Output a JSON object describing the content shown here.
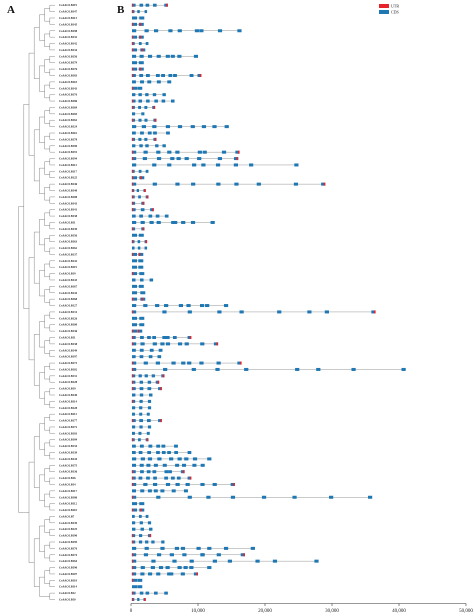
{
  "panels": {
    "a_label": "A",
    "b_label": "B"
  },
  "legend": [
    {
      "label": "UTR",
      "color": "#e8232a"
    },
    {
      "label": "CDS",
      "color": "#1f78b4"
    }
  ],
  "axis": {
    "ticks": [
      {
        "value": 0,
        "label": "0"
      },
      {
        "value": 10000,
        "label": "10,000"
      },
      {
        "value": 20000,
        "label": "20,000"
      },
      {
        "value": 30000,
        "label": "30,000"
      },
      {
        "value": 40000,
        "label": "40,000"
      },
      {
        "value": 50000,
        "label": "50,000"
      }
    ],
    "max": 50000
  },
  "colors": {
    "utr": "#e8232a",
    "cds": "#1f78b4",
    "intron": "#888888",
    "tree": "#555555"
  },
  "genes": [
    {
      "name": "CsAAO1.B119",
      "len": 5500
    },
    {
      "name": "CsAAO1.B147",
      "len": 2400
    },
    {
      "name": "CsAAO1.B113",
      "len": 1600
    },
    {
      "name": "CsAAO1.B145",
      "len": 1500
    },
    {
      "name": "CsAAO1.B198",
      "len": 16500
    },
    {
      "name": "CsAAO1.B132",
      "len": 1500
    },
    {
      "name": "CsAAO1.B142",
      "len": 2600
    },
    {
      "name": "CsAAO1.B134",
      "len": 1800
    },
    {
      "name": "CsAAO1.B156",
      "len": 10000
    },
    {
      "name": "CsAAO1.B179",
      "len": 1500
    },
    {
      "name": "CsAAO1.B176",
      "len": 1500
    },
    {
      "name": "CsAAO1.B183",
      "len": 10500
    },
    {
      "name": "CsAAO1.B118",
      "len": 6000
    },
    {
      "name": "CsAAO1.B143",
      "len": 1200
    },
    {
      "name": "CsAAO1.B176",
      "len": 5200
    },
    {
      "name": "CsAAO1.B186",
      "len": 6500
    },
    {
      "name": "CsAAO1.B169",
      "len": 3600
    },
    {
      "name": "CsAAO1.B183",
      "len": 2000
    },
    {
      "name": "CsAAO1.B162",
      "len": 3800
    },
    {
      "name": "CsAAO1.B124",
      "len": 14600
    },
    {
      "name": "CsAAO1.B116",
      "len": 5800
    },
    {
      "name": "CsAAO1.B178",
      "len": 3800
    },
    {
      "name": "CsAAO1.B190",
      "len": 5200
    },
    {
      "name": "CsAAO1.B191",
      "len": 16200
    },
    {
      "name": "CsAAO1.B194",
      "len": 16000
    },
    {
      "name": "CsAAO1.B112",
      "len": 25000
    },
    {
      "name": "CsAAO1.B117",
      "len": 2600
    },
    {
      "name": "CsAAO1.B125",
      "len": 1600
    },
    {
      "name": "CsAAO1.B146",
      "len": 29000
    },
    {
      "name": "CsAAO1.B140",
      "len": 2200
    },
    {
      "name": "CsAAO1.B108",
      "len": 2600
    },
    {
      "name": "CsAAO1.B143",
      "len": 2000
    },
    {
      "name": "CsAAO1.B141",
      "len": 3400
    },
    {
      "name": "CsAAO1.B138",
      "len": 5600
    },
    {
      "name": "CsAAO1.B11",
      "len": 12500
    },
    {
      "name": "CsAAO1.B139",
      "len": 2000
    },
    {
      "name": "CsAAO1.B156",
      "len": 1500
    },
    {
      "name": "CsAAO1.B163",
      "len": 2400
    },
    {
      "name": "CsAAO1.B162",
      "len": 2400
    },
    {
      "name": "CsAAO1.B137",
      "len": 1400
    },
    {
      "name": "CsAAO1.B142",
      "len": 1400
    },
    {
      "name": "CsAAO1.B119",
      "len": 1400
    },
    {
      "name": "CsAAO1.B19",
      "len": 1600
    },
    {
      "name": "CsAAO1.B143",
      "len": 3300
    },
    {
      "name": "CsAAO1.B167",
      "len": 1500
    },
    {
      "name": "CsAAO1.B144",
      "len": 1800
    },
    {
      "name": "CsAAO1.B168",
      "len": 1800
    },
    {
      "name": "CsAAO1.B127",
      "len": 14500
    },
    {
      "name": "CsAAO1.B131",
      "len": 36500
    },
    {
      "name": "CsAAO1.B126",
      "len": 1600
    },
    {
      "name": "CsAAO1.B100",
      "len": 1600
    },
    {
      "name": "CsAAO1.B136",
      "len": 1200
    },
    {
      "name": "CsAAO1.B11",
      "len": 9000
    },
    {
      "name": "CsAAO1.B138",
      "len": 13000
    },
    {
      "name": "CsAAO1.B149",
      "len": 4700
    },
    {
      "name": "CsAAO1.B197",
      "len": 4500
    },
    {
      "name": "CsAAO1.B173",
      "len": 16500
    },
    {
      "name": "CsAAO1.B102",
      "len": 41000
    },
    {
      "name": "CsAAO1.B131",
      "len": 5000
    },
    {
      "name": "CsAAO1.B128",
      "len": 4200
    },
    {
      "name": "CsAAO1.B19",
      "len": 4600
    },
    {
      "name": "CsAAO1.B140",
      "len": 3200
    },
    {
      "name": "CsAAO1.B114",
      "len": 3000
    },
    {
      "name": "CsAAO1.B128",
      "len": 3000
    },
    {
      "name": "CsAAO1.B112",
      "len": 2800
    },
    {
      "name": "CsAAO1.B177",
      "len": 4600
    },
    {
      "name": "CsAAO1.B172",
      "len": 3000
    },
    {
      "name": "CsAAO1.B103",
      "len": 2800
    },
    {
      "name": "CsAAO1.B184",
      "len": 2600
    },
    {
      "name": "CsAAO1.B134",
      "len": 7000
    },
    {
      "name": "CsAAO1.B139",
      "len": 9000
    },
    {
      "name": "CsAAO1.B144",
      "len": 12000
    },
    {
      "name": "CsAAO1.B175",
      "len": 11000
    },
    {
      "name": "CsAAO1.B136",
      "len": 8000
    },
    {
      "name": "CsAAO1.B16",
      "len": 9000
    },
    {
      "name": "CsAAO1.B14",
      "len": 15500
    },
    {
      "name": "CsAAO1.B117",
      "len": 8500
    },
    {
      "name": "CsAAO1.B180",
      "len": 36000
    },
    {
      "name": "CsAAO1.B112",
      "len": 1600
    },
    {
      "name": "CsAAO1.B110",
      "len": 1600
    },
    {
      "name": "CsAAO1.B7",
      "len": 2600
    },
    {
      "name": "CsAAO1.B139",
      "len": 3000
    },
    {
      "name": "CsAAO1.B125",
      "len": 3200
    },
    {
      "name": "CsAAO1.B190",
      "len": 3000
    },
    {
      "name": "CsAAO1.B195",
      "len": 5000
    },
    {
      "name": "CsAAO1.B176",
      "len": 18500
    },
    {
      "name": "CsAAO1.B174",
      "len": 17000
    },
    {
      "name": "CsAAO1.B164",
      "len": 28000
    },
    {
      "name": "CsAAO1.B190",
      "len": 12000
    },
    {
      "name": "CsAAO1.B107",
      "len": 10000
    },
    {
      "name": "CsAAO1.B118",
      "len": 1200
    },
    {
      "name": "CsAAO1.B114",
      "len": 1200
    },
    {
      "name": "CsAAO1.B12",
      "len": 5500
    },
    {
      "name": "CsAAO1.B10",
      "len": 2200
    }
  ]
}
